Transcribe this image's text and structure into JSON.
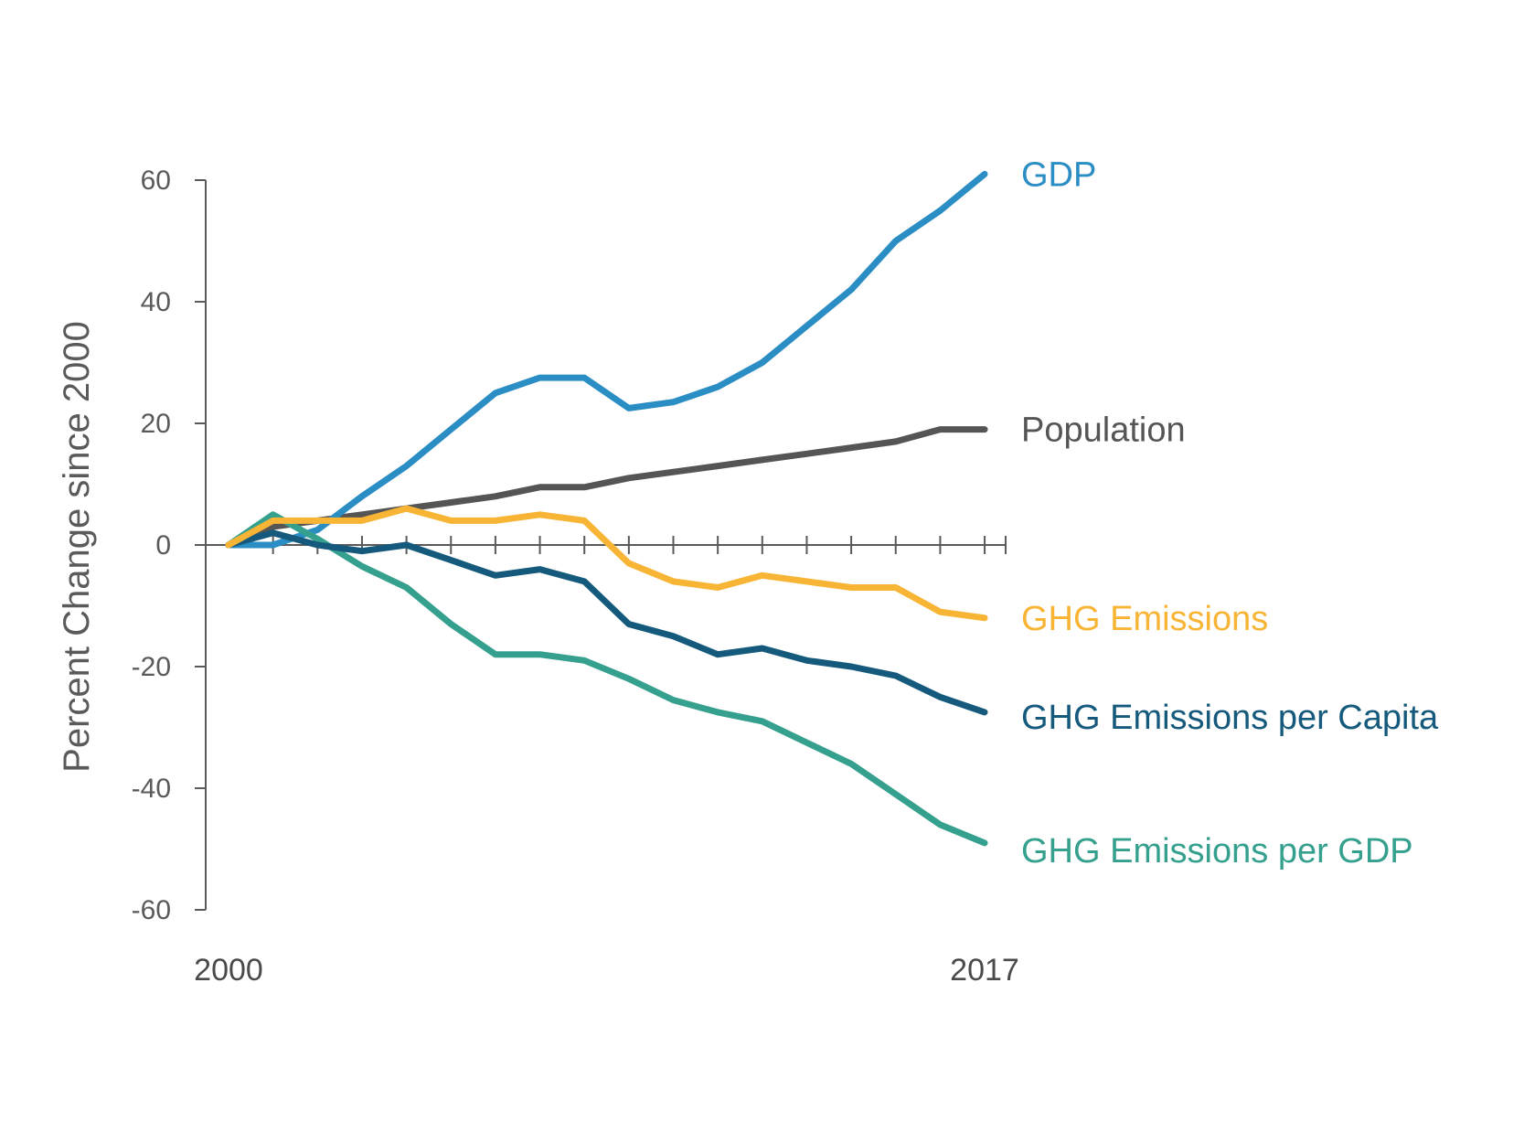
{
  "chart_data": {
    "type": "line",
    "ylabel": "Percent Change since 2000",
    "ylim": [
      -60,
      60
    ],
    "yticks": [
      60,
      40,
      20,
      0,
      -20,
      -40,
      -60
    ],
    "x": [
      2000,
      2001,
      2002,
      2003,
      2004,
      2005,
      2006,
      2007,
      2008,
      2009,
      2010,
      2011,
      2012,
      2013,
      2014,
      2015,
      2016,
      2017
    ],
    "x_tick_labels": [
      "2000",
      "2017"
    ],
    "series": [
      {
        "name": "GDP",
        "color": "#2a8dc4",
        "values": [
          0,
          0,
          2.5,
          8,
          13,
          19,
          25,
          27.5,
          27.5,
          22.5,
          23.5,
          26,
          30,
          36,
          42,
          50,
          55,
          61
        ]
      },
      {
        "name": "Population",
        "color": "#555555",
        "values": [
          0,
          3,
          4,
          5,
          6,
          7,
          8,
          9.5,
          9.5,
          11,
          12,
          13,
          14,
          15,
          16,
          17,
          19,
          19
        ]
      },
      {
        "name": "GHG Emissions",
        "color": "#f8b434",
        "values": [
          0,
          4,
          4,
          4,
          6,
          4,
          4,
          5,
          4,
          -3,
          -6,
          -7,
          -5,
          -6,
          -7,
          -7,
          -11,
          -12
        ]
      },
      {
        "name": "GHG Emissions per Capita",
        "color": "#155a7c",
        "values": [
          0,
          2,
          0,
          -1,
          0,
          -2.5,
          -5,
          -4,
          -6,
          -13,
          -15,
          -18,
          -17,
          -19,
          -20,
          -21.5,
          -25,
          -27.5
        ]
      },
      {
        "name": "GHG Emissions per GDP",
        "color": "#35a08e",
        "values": [
          0,
          5,
          1,
          -3.5,
          -7,
          -13,
          -18,
          -18,
          -19,
          -22,
          -25.5,
          -27.5,
          -29,
          -32.5,
          -36,
          -41,
          -46,
          -49
        ]
      }
    ]
  }
}
